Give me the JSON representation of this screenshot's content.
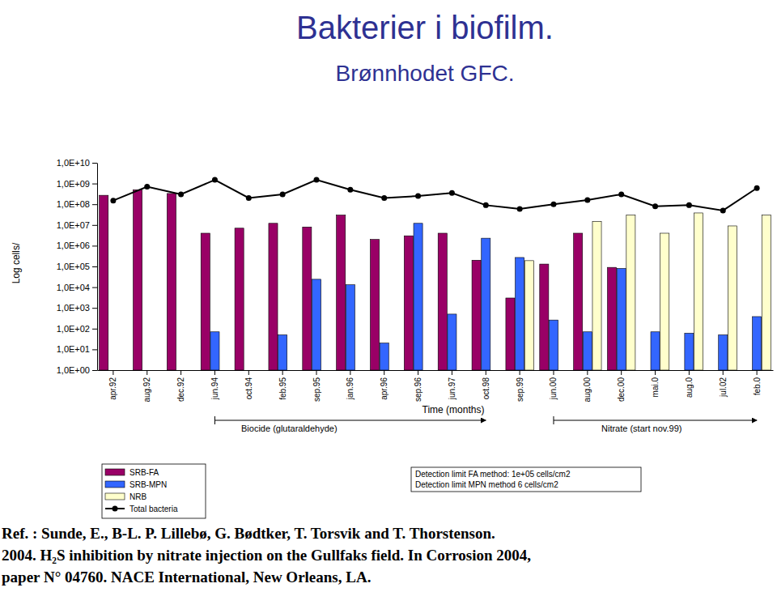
{
  "chart_data": {
    "type": "bar",
    "title": "Bakterier i biofilm.",
    "subtitle": "Brønnhodet GFC.",
    "xlabel": "Time (months)",
    "ylabel": "Log cells/",
    "log": "y",
    "grid": false,
    "legend": "bottom",
    "categories": [
      "apr.92",
      "aug.92",
      "dec.92",
      "jun.94",
      "oct.94",
      "feb.95",
      "sep.95",
      "jan.96",
      "apr.96",
      "sep.96",
      "jun.97",
      "oct.98",
      "sep.99",
      "jun.00",
      "aug.00",
      "dec.00",
      "mai.0",
      "aug.0",
      "jul.02",
      "feb.0"
    ],
    "ylim": [
      1,
      10000000000
    ],
    "yticks": [
      {
        "value": 1,
        "label": "1,0E+00"
      },
      {
        "value": 10,
        "label": "1,0E+01"
      },
      {
        "value": 100,
        "label": "1,0E+02"
      },
      {
        "value": 1000,
        "label": "1,0E+03"
      },
      {
        "value": 10000,
        "label": "1,0E+04"
      },
      {
        "value": 100000,
        "label": "1,0E+05"
      },
      {
        "value": 1000000,
        "label": "1,0E+06"
      },
      {
        "value": 10000000,
        "label": "1,0E+07"
      },
      {
        "value": 100000000,
        "label": "1,0E+08"
      },
      {
        "value": 1000000000,
        "label": "1,0E+09"
      },
      {
        "value": 10000000000,
        "label": "1,0E+10"
      }
    ],
    "series": [
      {
        "name": "SRB-FA",
        "type": "bar",
        "color": "#990066",
        "values": [
          270000000,
          500000000,
          330000000,
          4000000,
          7000000,
          12000000,
          8000000,
          30000000,
          2000000,
          3000000,
          4000000,
          200000,
          3000,
          130000,
          4000000,
          90000,
          null,
          null,
          null,
          null
        ]
      },
      {
        "name": "SRB-MPN",
        "type": "bar",
        "color": "#3366ff",
        "values": [
          null,
          null,
          null,
          70,
          null,
          50,
          24000,
          13000,
          20,
          12000000,
          500,
          2300000,
          270000,
          260,
          70,
          80000,
          70,
          60,
          50,
          380
        ]
      },
      {
        "name": "NRB",
        "type": "bar",
        "color": "#ffffcc",
        "values": [
          null,
          null,
          null,
          null,
          null,
          null,
          null,
          null,
          null,
          null,
          null,
          null,
          190000,
          null,
          15000000,
          30000000,
          4000000,
          38000000,
          9000000,
          30000000
        ]
      },
      {
        "name": "Total bacteria",
        "type": "line",
        "color": "#000000",
        "marker": "circle",
        "line_style": "solid",
        "values": [
          150000000,
          700000000,
          300000000,
          1500000000,
          200000000,
          300000000,
          1500000000,
          500000000,
          200000000,
          250000000,
          350000000,
          90000000,
          60000000,
          100000000,
          160000000,
          300000000,
          80000000,
          90000000,
          50000000,
          600000000
        ]
      }
    ],
    "annotations": [
      "Biocide (glutaraldehyde)",
      "Nitrate (start nov.99)",
      "Detection limit FA method: 1e+05 cells/cm2",
      "Detection limit MPN method 6 cells/cm2",
      "Ref. : Sunde, E., B-L. P. Lillebø, G. Bødtker, T. Torsvik and T. Thorstenson.",
      "2004. H₂S inhibition by nitrate injection on the Gullfaks field. In Corrosion 2004,",
      "paper N° 04760. NACE International, New Orleans, LA."
    ]
  }
}
